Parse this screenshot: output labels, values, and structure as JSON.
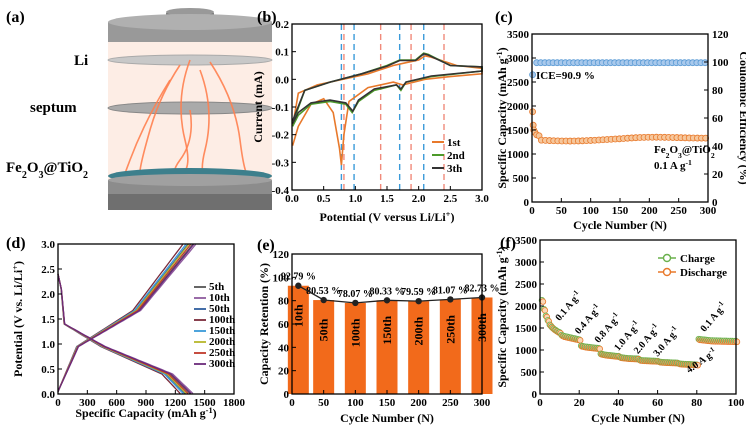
{
  "figure": {
    "panel_labels": [
      "(a)",
      "(b)",
      "(c)",
      "(d)",
      "(e)",
      "(f)"
    ],
    "schematic": {
      "labels": {
        "li": "Li",
        "septum": "septum",
        "electrode": "Fe2O3@TiO2"
      },
      "colors": {
        "dendrite": "#ff7f4f",
        "electrode": "#3d7f8c",
        "cell": "#8c8c8c"
      }
    }
  },
  "chart_data": [
    {
      "panel": "(b)",
      "type": "line",
      "xlabel": "Potential (V versus Li/Li+)",
      "ylabel": "Current (mA)",
      "xlim": [
        0.0,
        3.0
      ],
      "ylim": [
        -0.4,
        0.2
      ],
      "xticks": [
        "0.0",
        "0.5",
        "1.0",
        "1.5",
        "2.0",
        "2.5",
        "3.0"
      ],
      "yticks": [
        "-0.4",
        "-0.3",
        "-0.2",
        "-0.1",
        "0.0",
        "0.1",
        "0.2"
      ],
      "legend": [
        "1st",
        "2nd",
        "3th"
      ],
      "colors": [
        "#e8792b",
        "#4c9a2a",
        "#333333"
      ],
      "dashed_lines": [
        {
          "x": 0.78,
          "color": "#3a9ad9"
        },
        {
          "x": 0.98,
          "color": "#3a9ad9"
        },
        {
          "x": 1.7,
          "color": "#3a9ad9"
        },
        {
          "x": 2.08,
          "color": "#3a9ad9"
        },
        {
          "x": 0.82,
          "color": "#f08a7a"
        },
        {
          "x": 1.4,
          "color": "#f08a7a"
        },
        {
          "x": 1.88,
          "color": "#f08a7a"
        },
        {
          "x": 2.4,
          "color": "#f08a7a"
        }
      ],
      "series": [
        {
          "name": "1st",
          "reduction": [
            [
              0.01,
              -0.24
            ],
            [
              0.1,
              -0.17
            ],
            [
              0.3,
              -0.09
            ],
            [
              0.5,
              -0.07
            ],
            [
              0.65,
              -0.12
            ],
            [
              0.75,
              -0.25
            ],
            [
              0.78,
              -0.31
            ],
            [
              0.82,
              -0.2
            ],
            [
              0.9,
              -0.08
            ],
            [
              1.2,
              -0.03
            ],
            [
              1.6,
              -0.01
            ],
            [
              1.75,
              -0.02
            ],
            [
              2.1,
              0.0
            ],
            [
              2.5,
              0.01
            ],
            [
              3.0,
              0.02
            ]
          ],
          "oxidation": [
            [
              3.0,
              0.04
            ],
            [
              2.6,
              0.05
            ],
            [
              2.2,
              0.08
            ],
            [
              2.1,
              0.085
            ],
            [
              2.0,
              0.07
            ],
            [
              1.8,
              0.06
            ],
            [
              1.6,
              0.05
            ],
            [
              1.2,
              0.02
            ],
            [
              0.8,
              0.0
            ],
            [
              0.4,
              -0.02
            ],
            [
              0.1,
              -0.05
            ],
            [
              0.01,
              -0.17
            ]
          ]
        },
        {
          "name": "2nd",
          "reduction": [
            [
              0.01,
              -0.17
            ],
            [
              0.1,
              -0.13
            ],
            [
              0.3,
              -0.09
            ],
            [
              0.6,
              -0.08
            ],
            [
              0.85,
              -0.09
            ],
            [
              0.95,
              -0.12
            ],
            [
              1.05,
              -0.08
            ],
            [
              1.3,
              -0.04
            ],
            [
              1.65,
              -0.02
            ],
            [
              1.72,
              -0.04
            ],
            [
              1.8,
              -0.01
            ],
            [
              2.2,
              0.01
            ],
            [
              3.0,
              0.03
            ]
          ],
          "oxidation": [
            [
              3.0,
              0.045
            ],
            [
              2.5,
              0.05
            ],
            [
              2.15,
              0.09
            ],
            [
              2.08,
              0.095
            ],
            [
              1.95,
              0.07
            ],
            [
              1.7,
              0.07
            ],
            [
              1.5,
              0.05
            ],
            [
              1.1,
              0.02
            ],
            [
              0.6,
              -0.01
            ],
            [
              0.2,
              -0.04
            ],
            [
              0.01,
              -0.16
            ]
          ]
        },
        {
          "name": "3th",
          "reduction": [
            [
              0.01,
              -0.16
            ],
            [
              0.1,
              -0.12
            ],
            [
              0.3,
              -0.085
            ],
            [
              0.6,
              -0.075
            ],
            [
              0.85,
              -0.085
            ],
            [
              0.96,
              -0.115
            ],
            [
              1.05,
              -0.075
            ],
            [
              1.3,
              -0.035
            ],
            [
              1.65,
              -0.02
            ],
            [
              1.72,
              -0.035
            ],
            [
              1.8,
              -0.01
            ],
            [
              2.2,
              0.012
            ],
            [
              3.0,
              0.03
            ]
          ],
          "oxidation": [
            [
              3.0,
              0.045
            ],
            [
              2.5,
              0.05
            ],
            [
              2.15,
              0.088
            ],
            [
              2.08,
              0.092
            ],
            [
              1.95,
              0.068
            ],
            [
              1.7,
              0.068
            ],
            [
              1.5,
              0.048
            ],
            [
              1.1,
              0.02
            ],
            [
              0.6,
              -0.01
            ],
            [
              0.2,
              -0.04
            ],
            [
              0.01,
              -0.15
            ]
          ]
        }
      ]
    },
    {
      "panel": "(c)",
      "type": "scatter",
      "xlabel": "Cycle Number (N)",
      "ylabel": "Specific Capacity (mAh g-1)",
      "ylabel_right": "Coulombic Efficiency (%)",
      "xlim": [
        0,
        300
      ],
      "ylim": [
        0,
        3500
      ],
      "ylim_right": [
        0,
        120
      ],
      "xticks": [
        "0",
        "50",
        "100",
        "150",
        "200",
        "250",
        "300"
      ],
      "yticks": [
        "0",
        "500",
        "1000",
        "1500",
        "2000",
        "2500",
        "3000",
        "3500"
      ],
      "yticks_right": [
        "0",
        "20",
        "40",
        "60",
        "80",
        "100",
        "120"
      ],
      "annotations": [
        "ICE=90.9 %",
        "Fe2O3@TiO2",
        "0.1 A g-1"
      ],
      "capacity_series": {
        "color": "#e8792b",
        "first_points": [
          [
            1,
            1880
          ],
          [
            2,
            1600
          ],
          [
            3,
            1500
          ],
          [
            5,
            1450
          ],
          [
            8,
            1400
          ],
          [
            12,
            1380
          ]
        ],
        "plateau": 1300,
        "end": 1360
      },
      "efficiency_series": {
        "color": "#5b9bd5",
        "first": 90.9,
        "stable": 99.5
      }
    },
    {
      "panel": "(d)",
      "type": "line",
      "xlabel": "Specific Capacity (mAh g-1)",
      "ylabel": "Potential (V vs. Li/Li+)",
      "xlim": [
        0,
        1800
      ],
      "ylim": [
        0.0,
        3.0
      ],
      "xticks": [
        "0",
        "300",
        "600",
        "900",
        "1200",
        "1500",
        "1800"
      ],
      "yticks": [
        "0.0",
        "0.5",
        "1.0",
        "1.5",
        "2.0",
        "2.5",
        "3.0"
      ],
      "legend": [
        "5th",
        "10th",
        "50th",
        "100th",
        "150th",
        "200th",
        "250th",
        "300th"
      ],
      "colors": [
        "#555555",
        "#8e5b9e",
        "#2f5d9e",
        "#7a2a3a",
        "#3a9ad9",
        "#b7b72a",
        "#c0392b",
        "#6b2a7a"
      ],
      "end_capacities": [
        1350,
        1380,
        1300,
        1250,
        1280,
        1310,
        1330,
        1360
      ]
    },
    {
      "panel": "(e)",
      "type": "bar",
      "xlabel": "Cycle Number (N)",
      "ylabel": "Capacity Retention (%)",
      "xlim": [
        0,
        300
      ],
      "ylim": [
        0,
        120
      ],
      "xticks": [
        "0",
        "50",
        "100",
        "150",
        "200",
        "250",
        "300"
      ],
      "yticks": [
        "0",
        "20",
        "40",
        "60",
        "80",
        "100",
        "120"
      ],
      "categories": [
        "10th",
        "50th",
        "100th",
        "150th",
        "200th",
        "250th",
        "300th"
      ],
      "x": [
        10,
        50,
        100,
        150,
        200,
        250,
        300
      ],
      "values": [
        92.79,
        80.53,
        78.07,
        80.33,
        79.59,
        81.07,
        82.73
      ],
      "value_labels": [
        "92.79 %",
        "80.53 %",
        "78.07 %",
        "80.33 %",
        "79.59 %",
        "81.07 %",
        "82.73 %"
      ],
      "bar_color": "#f26a1b"
    },
    {
      "panel": "(f)",
      "type": "scatter",
      "xlabel": "Cycle Number (N)",
      "ylabel": "Specific Capacity (mAh g-1)",
      "xlim": [
        0,
        100
      ],
      "ylim": [
        0,
        3500
      ],
      "xticks": [
        "0",
        "20",
        "40",
        "60",
        "80",
        "100"
      ],
      "yticks": [
        "0",
        "500",
        "1000",
        "1500",
        "2000",
        "2500",
        "3000",
        "3500"
      ],
      "legend": [
        "Charge",
        "Discharge"
      ],
      "colors": [
        "#6ab04c",
        "#e8792b"
      ],
      "rate_labels": [
        "0.1 A g-1",
        "0.4 A g-1",
        "0.8 A g-1",
        "1.0 A g-1",
        "2.0 A g-1",
        "3.0 A g-1",
        "4.0 A g-1",
        "0.1 A g-1"
      ],
      "segments": [
        {
          "from": 1,
          "to": 10,
          "values": [
            2100,
            1900,
            1750,
            1650,
            1550,
            1500,
            1460,
            1430,
            1400,
            1380
          ]
        },
        {
          "from": 11,
          "to": 20,
          "values": [
            1320,
            1300,
            1290,
            1280,
            1270,
            1260,
            1250,
            1240,
            1230,
            1220
          ]
        },
        {
          "from": 21,
          "to": 30,
          "values": [
            1080,
            1070,
            1060,
            1055,
            1050,
            1045,
            1040,
            1035,
            1030,
            1025
          ]
        },
        {
          "from": 31,
          "to": 40,
          "values": [
            900,
            890,
            880,
            875,
            870,
            865,
            860,
            855,
            850,
            848
          ]
        },
        {
          "from": 41,
          "to": 50,
          "values": [
            820,
            815,
            810,
            805,
            800,
            798,
            796,
            794,
            792,
            790
          ]
        },
        {
          "from": 51,
          "to": 60,
          "values": [
            760,
            755,
            752,
            750,
            748,
            746,
            744,
            742,
            740,
            738
          ]
        },
        {
          "from": 61,
          "to": 70,
          "values": [
            720,
            715,
            712,
            710,
            708,
            706,
            704,
            702,
            700,
            698
          ]
        },
        {
          "from": 71,
          "to": 80,
          "values": [
            680,
            675,
            672,
            670,
            668,
            666,
            664,
            662,
            660,
            655
          ]
        },
        {
          "from": 81,
          "to": 100,
          "values": [
            1230,
            1225,
            1220,
            1215,
            1210,
            1205,
            1200,
            1198,
            1196,
            1195,
            1194,
            1193,
            1192,
            1191,
            1190,
            1189,
            1188,
            1187,
            1186,
            1185
          ]
        }
      ]
    }
  ]
}
